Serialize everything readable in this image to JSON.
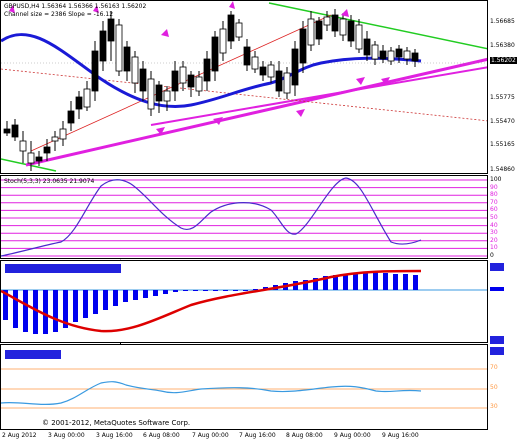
{
  "window": {
    "symbol_info": "GBPUSD,H4  1.56364 1.56366 1.56163 1.56202",
    "channel_info": "Channel size = 2386 Slope = -16.12"
  },
  "price_axis": {
    "labels": [
      "1.56685",
      "1.56380",
      "1.56202",
      "1.55775",
      "1.55470",
      "1.55165",
      "1.54860"
    ],
    "current": "1.56202"
  },
  "stoch": {
    "title": "Stoch(5,3,3) 23.0635 21.9074",
    "levels": [
      "100",
      "90",
      "80",
      "70",
      "60",
      "50",
      "40",
      "30",
      "20",
      "10",
      "0"
    ]
  },
  "macd": {
    "title": ""
  },
  "rsi": {
    "title": "",
    "levels": [
      "70",
      "50",
      "30"
    ]
  },
  "time_axis": [
    "2 Aug 2012",
    "3 Aug 00:00",
    "3 Aug 16:00",
    "6 Aug 08:00",
    "7 Aug 00:00",
    "7 Aug 16:00",
    "8 Aug 08:00",
    "9 Aug 00:00",
    "9 Aug 16:00"
  ],
  "copyright": "© 2001-2012, MetaQuotes Software Corp.",
  "colors": {
    "ma": "#1a1ad6",
    "trend": "#e020e0",
    "channel_top": "#22cc22",
    "stoch_line": "#4a2acc",
    "stoch_levels": "#e020e0",
    "macd_hist": "#0000ee",
    "macd_signal": "#dd0000",
    "rsi": "#3a9ae0",
    "rsi_levels": "#ff9944"
  }
}
